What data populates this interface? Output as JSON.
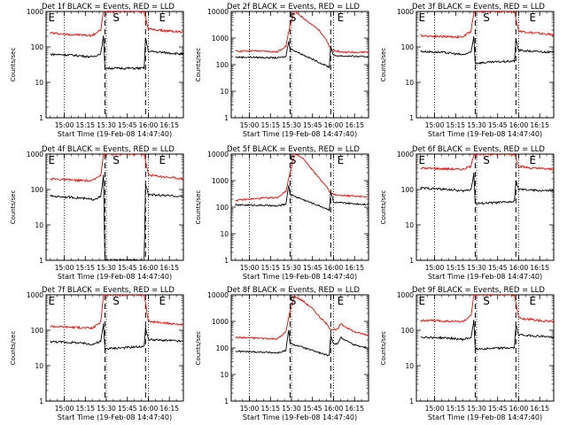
{
  "figure": {
    "background": "#ffffff"
  },
  "chart_data": [
    {
      "type": "line",
      "title": "Det 1f BLACK = Events, RED = LLD",
      "xlabel": "Start Time (19-Feb-08 14:47:40)",
      "ylabel": "Counts/sec",
      "x_ticks": [
        "15:00",
        "15:15",
        "15:30",
        "15:45",
        "16:00",
        "16:15"
      ],
      "y_ticks": [
        "1",
        "10",
        "100",
        "1000"
      ],
      "yscale": "log",
      "ylim": [
        1,
        1000
      ],
      "markers": [
        {
          "label": "E",
          "x": "14:51"
        },
        {
          "label": "S",
          "x": "15:37"
        },
        {
          "label": "E",
          "x": "16:10"
        }
      ],
      "vlines_dotted": [
        "15:00",
        "15:30",
        "16:00"
      ],
      "vlines_dashed": [
        "15:29",
        "15:58"
      ],
      "series": [
        {
          "color": "#ff0000",
          "x": [
            "14:50",
            "15:00",
            "15:10",
            "15:20",
            "15:26",
            "15:28",
            "15:57",
            "16:00",
            "16:10",
            "16:20",
            "16:25"
          ],
          "values": [
            250,
            230,
            220,
            210,
            300,
            1000,
            1000,
            320,
            290,
            270,
            260
          ]
        },
        {
          "color": "#000000",
          "x": [
            "14:50",
            "15:00",
            "15:10",
            "15:20",
            "15:26",
            "15:28",
            "15:29",
            "15:57",
            "15:58",
            "16:00",
            "16:10",
            "16:20",
            "16:25"
          ],
          "values": [
            62,
            60,
            57,
            52,
            65,
            200,
            25,
            25,
            180,
            75,
            70,
            65,
            62
          ]
        }
      ]
    },
    {
      "type": "line",
      "title": "Det 2f BLACK = Events, RED = LLD",
      "xlabel": "Start Time (19-Feb-08 14:47:40)",
      "ylabel": "Counts/sec",
      "x_ticks": [
        "15:00",
        "15:15",
        "15:30",
        "15:45",
        "16:00",
        "16:15"
      ],
      "y_ticks": [
        "1",
        "10",
        "100",
        "1000",
        "10000"
      ],
      "yscale": "log",
      "ylim": [
        1,
        10000
      ],
      "markers": [
        {
          "label": "S",
          "x": "15:31"
        },
        {
          "label": "E",
          "x": "16:05"
        }
      ],
      "vlines_dotted": [
        "15:00",
        "15:30",
        "16:00"
      ],
      "vlines_dashed": [
        "15:29",
        "15:58"
      ],
      "series": [
        {
          "color": "#ff0000",
          "x": [
            "14:50",
            "15:00",
            "15:10",
            "15:20",
            "15:26",
            "15:29",
            "15:32",
            "15:38",
            "15:45",
            "15:50",
            "15:55",
            "15:58",
            "16:05",
            "16:15",
            "16:25"
          ],
          "values": [
            320,
            330,
            320,
            300,
            500,
            3000,
            10000,
            6000,
            3000,
            2000,
            800,
            380,
            300,
            290,
            300
          ]
        },
        {
          "color": "#000000",
          "x": [
            "14:50",
            "15:00",
            "15:10",
            "15:20",
            "15:26",
            "15:28",
            "15:29",
            "15:57",
            "15:58",
            "16:00",
            "16:10",
            "16:20",
            "16:25"
          ],
          "values": [
            190,
            190,
            185,
            180,
            200,
            800,
            400,
            80,
            500,
            220,
            210,
            200,
            200
          ]
        }
      ]
    },
    {
      "type": "line",
      "title": "Det 3f BLACK = Events, RED = LLD",
      "xlabel": "Start Time (19-Feb-08 14:47:40)",
      "ylabel": "Counts/sec",
      "x_ticks": [
        "15:00",
        "15:15",
        "15:30",
        "15:45",
        "16:00",
        "16:15"
      ],
      "y_ticks": [
        "1",
        "10",
        "100",
        "1000"
      ],
      "yscale": "log",
      "ylim": [
        1,
        1000
      ],
      "markers": [
        {
          "label": "E",
          "x": "14:51"
        },
        {
          "label": "S",
          "x": "15:37"
        },
        {
          "label": "E",
          "x": "16:10"
        }
      ],
      "vlines_dotted": [
        "15:00",
        "15:30",
        "16:00"
      ],
      "vlines_dashed": [
        "15:29",
        "15:58"
      ],
      "series": [
        {
          "color": "#ff0000",
          "x": [
            "14:50",
            "15:00",
            "15:10",
            "15:20",
            "15:26",
            "15:28",
            "15:57",
            "16:00",
            "16:10",
            "16:20",
            "16:25"
          ],
          "values": [
            210,
            200,
            195,
            190,
            280,
            1000,
            1000,
            280,
            250,
            230,
            220
          ]
        },
        {
          "color": "#000000",
          "x": [
            "14:50",
            "15:00",
            "15:10",
            "15:20",
            "15:26",
            "15:28",
            "15:29",
            "15:57",
            "15:58",
            "16:00",
            "16:10",
            "16:20",
            "16:25"
          ],
          "values": [
            75,
            72,
            68,
            60,
            70,
            200,
            35,
            40,
            160,
            80,
            75,
            72,
            70
          ]
        }
      ]
    },
    {
      "type": "line",
      "title": "Det 4f BLACK = Events, RED = LLD",
      "xlabel": "Start Time (19-Feb-08 14:47:40)",
      "ylabel": "Counts/sec",
      "x_ticks": [
        "15:00",
        "15:15",
        "15:30",
        "15:45",
        "16:00",
        "16:15"
      ],
      "y_ticks": [
        "1",
        "10",
        "100",
        "1000"
      ],
      "yscale": "log",
      "ylim": [
        1,
        1000
      ],
      "markers": [
        {
          "label": "E",
          "x": "14:51"
        },
        {
          "label": "S",
          "x": "15:37"
        },
        {
          "label": "E",
          "x": "16:10"
        }
      ],
      "vlines_dotted": [
        "15:00",
        "15:30",
        "16:00"
      ],
      "vlines_dashed": [
        "15:29",
        "15:58"
      ],
      "series": [
        {
          "color": "#ff0000",
          "x": [
            "14:50",
            "15:00",
            "15:10",
            "15:20",
            "15:26",
            "15:28",
            "15:57",
            "16:00",
            "16:10",
            "16:20",
            "16:25"
          ],
          "values": [
            200,
            190,
            180,
            175,
            260,
            1000,
            1000,
            260,
            230,
            210,
            200
          ]
        },
        {
          "color": "#000000",
          "x": [
            "14:50",
            "15:00",
            "15:10",
            "15:20",
            "15:26",
            "15:28",
            "15:29",
            "15:57",
            "15:58",
            "16:00",
            "16:10",
            "16:20",
            "16:25"
          ],
          "values": [
            65,
            62,
            58,
            52,
            62,
            250,
            1,
            1,
            150,
            72,
            68,
            65,
            62
          ]
        }
      ]
    },
    {
      "type": "line",
      "title": "Det 5f BLACK = Events, RED = LLD",
      "xlabel": "Start Time (19-Feb-08 14:47:40)",
      "ylabel": "Counts/sec",
      "x_ticks": [
        "15:00",
        "15:15",
        "15:30",
        "15:45",
        "16:00",
        "16:15"
      ],
      "y_ticks": [
        "1",
        "10",
        "100",
        "1000",
        "10000"
      ],
      "yscale": "log",
      "ylim": [
        1,
        10000
      ],
      "markers": [
        {
          "label": "S",
          "x": "15:31"
        },
        {
          "label": "E",
          "x": "16:05"
        }
      ],
      "vlines_dotted": [
        "15:00",
        "15:30",
        "16:00"
      ],
      "vlines_dashed": [
        "15:29",
        "15:58"
      ],
      "series": [
        {
          "color": "#ff0000",
          "x": [
            "14:50",
            "15:00",
            "15:10",
            "15:20",
            "15:26",
            "15:29",
            "15:32",
            "15:38",
            "15:45",
            "15:50",
            "15:55",
            "15:58",
            "16:05",
            "16:15",
            "16:25"
          ],
          "values": [
            180,
            200,
            220,
            230,
            400,
            2000,
            10000,
            7000,
            2500,
            1200,
            600,
            320,
            280,
            260,
            250
          ]
        },
        {
          "color": "#000000",
          "x": [
            "14:50",
            "15:00",
            "15:10",
            "15:20",
            "15:26",
            "15:28",
            "15:29",
            "15:57",
            "15:58",
            "16:00",
            "16:10",
            "16:20",
            "16:25"
          ],
          "values": [
            120,
            120,
            118,
            110,
            130,
            700,
            300,
            80,
            400,
            150,
            140,
            130,
            130
          ]
        }
      ]
    },
    {
      "type": "line",
      "title": "Det 6f BLACK = Events, RED = LLD",
      "xlabel": "Start Time (19-Feb-08 14:47:40)",
      "ylabel": "Counts/sec",
      "x_ticks": [
        "15:00",
        "15:15",
        "15:30",
        "15:45",
        "16:00",
        "16:15"
      ],
      "y_ticks": [
        "1",
        "10",
        "100",
        "1000"
      ],
      "yscale": "log",
      "ylim": [
        1,
        1000
      ],
      "markers": [
        {
          "label": "E",
          "x": "14:51"
        },
        {
          "label": "S",
          "x": "15:37"
        },
        {
          "label": "E",
          "x": "16:10"
        }
      ],
      "vlines_dotted": [
        "15:00",
        "15:30",
        "16:00"
      ],
      "vlines_dashed": [
        "15:29",
        "15:58"
      ],
      "series": [
        {
          "color": "#ff0000",
          "x": [
            "14:50",
            "15:00",
            "15:10",
            "15:20",
            "15:26",
            "15:28",
            "15:57",
            "16:00",
            "16:10",
            "16:20",
            "16:25"
          ],
          "values": [
            400,
            390,
            380,
            370,
            450,
            1000,
            1000,
            450,
            400,
            380,
            370
          ]
        },
        {
          "color": "#000000",
          "x": [
            "14:50",
            "15:00",
            "15:10",
            "15:20",
            "15:26",
            "15:28",
            "15:29",
            "15:57",
            "15:58",
            "16:00",
            "16:10",
            "16:20",
            "16:25"
          ],
          "values": [
            110,
            105,
            100,
            90,
            100,
            300,
            40,
            45,
            180,
            100,
            95,
            92,
            90
          ]
        }
      ]
    },
    {
      "type": "line",
      "title": "Det 7f BLACK = Events, RED = LLD",
      "xlabel": "Start Time (19-Feb-08 14:47:40)",
      "ylabel": "Counts/sec",
      "x_ticks": [
        "15:00",
        "15:15",
        "15:30",
        "15:45",
        "16:00",
        "16:15"
      ],
      "y_ticks": [
        "1",
        "10",
        "100",
        "1000"
      ],
      "yscale": "log",
      "ylim": [
        1,
        1000
      ],
      "markers": [
        {
          "label": "E",
          "x": "14:51"
        },
        {
          "label": "S",
          "x": "15:37"
        },
        {
          "label": "E",
          "x": "16:10"
        }
      ],
      "vlines_dotted": [
        "15:00",
        "15:30",
        "16:00"
      ],
      "vlines_dashed": [
        "15:29",
        "15:58"
      ],
      "series": [
        {
          "color": "#ff0000",
          "x": [
            "14:50",
            "15:00",
            "15:10",
            "15:20",
            "15:26",
            "15:28",
            "15:57",
            "16:00",
            "16:10",
            "16:20",
            "16:25"
          ],
          "values": [
            130,
            125,
            120,
            115,
            170,
            1000,
            1000,
            180,
            160,
            150,
            145
          ]
        },
        {
          "color": "#000000",
          "x": [
            "14:50",
            "15:00",
            "15:10",
            "15:20",
            "15:26",
            "15:28",
            "15:29",
            "15:57",
            "15:58",
            "16:00",
            "16:10",
            "16:20",
            "16:25"
          ],
          "values": [
            48,
            46,
            44,
            40,
            48,
            150,
            30,
            35,
            120,
            55,
            52,
            50,
            48
          ]
        }
      ]
    },
    {
      "type": "line",
      "title": "Det 8f BLACK = Events, RED = LLD",
      "xlabel": "Start Time (19-Feb-08 14:47:40)",
      "ylabel": "Counts/sec",
      "x_ticks": [
        "15:00",
        "15:15",
        "15:30",
        "15:45",
        "16:00",
        "16:15"
      ],
      "y_ticks": [
        "1",
        "10",
        "100",
        "1000",
        "10000"
      ],
      "yscale": "log",
      "ylim": [
        1,
        10000
      ],
      "markers": [
        {
          "label": "S",
          "x": "15:31"
        },
        {
          "label": "E",
          "x": "16:05"
        }
      ],
      "vlines_dotted": [
        "15:00",
        "15:30",
        "16:00"
      ],
      "vlines_dashed": [
        "15:29",
        "15:58"
      ],
      "series": [
        {
          "color": "#ff0000",
          "x": [
            "14:50",
            "15:00",
            "15:10",
            "15:20",
            "15:26",
            "15:29",
            "15:32",
            "15:38",
            "15:45",
            "15:50",
            "15:55",
            "15:58",
            "16:03",
            "16:05",
            "16:15",
            "16:25"
          ],
          "values": [
            250,
            240,
            230,
            220,
            400,
            2500,
            9000,
            6000,
            3000,
            1500,
            800,
            500,
            500,
            800,
            400,
            300
          ]
        },
        {
          "color": "#000000",
          "x": [
            "14:50",
            "15:00",
            "15:10",
            "15:20",
            "15:26",
            "15:28",
            "15:29",
            "15:57",
            "15:58",
            "16:00",
            "16:03",
            "16:05",
            "16:15",
            "16:25"
          ],
          "values": [
            75,
            72,
            70,
            65,
            80,
            500,
            150,
            50,
            300,
            150,
            140,
            250,
            130,
            100
          ]
        }
      ]
    },
    {
      "type": "line",
      "title": "Det 9f BLACK = Events, RED = LLD",
      "xlabel": "Start Time (19-Feb-08 14:47:40)",
      "ylabel": "Counts/sec",
      "x_ticks": [
        "15:00",
        "15:15",
        "15:30",
        "15:45",
        "16:00",
        "16:15"
      ],
      "y_ticks": [
        "1",
        "10",
        "100",
        "1000"
      ],
      "yscale": "log",
      "ylim": [
        1,
        1000
      ],
      "markers": [
        {
          "label": "E",
          "x": "14:51"
        },
        {
          "label": "S",
          "x": "15:37"
        },
        {
          "label": "E",
          "x": "16:10"
        }
      ],
      "vlines_dotted": [
        "15:00",
        "15:30",
        "16:00"
      ],
      "vlines_dashed": [
        "15:29",
        "15:58"
      ],
      "series": [
        {
          "color": "#ff0000",
          "x": [
            "14:50",
            "15:00",
            "15:10",
            "15:20",
            "15:26",
            "15:28",
            "15:57",
            "16:00",
            "16:10",
            "16:20",
            "16:25"
          ],
          "values": [
            190,
            185,
            180,
            175,
            250,
            1000,
            1000,
            220,
            200,
            180,
            175
          ]
        },
        {
          "color": "#000000",
          "x": [
            "14:50",
            "15:00",
            "15:10",
            "15:20",
            "15:26",
            "15:28",
            "15:29",
            "15:57",
            "15:58",
            "16:00",
            "16:10",
            "16:20",
            "16:25"
          ],
          "values": [
            65,
            62,
            60,
            55,
            62,
            200,
            30,
            32,
            140,
            75,
            70,
            66,
            62
          ]
        }
      ]
    }
  ]
}
